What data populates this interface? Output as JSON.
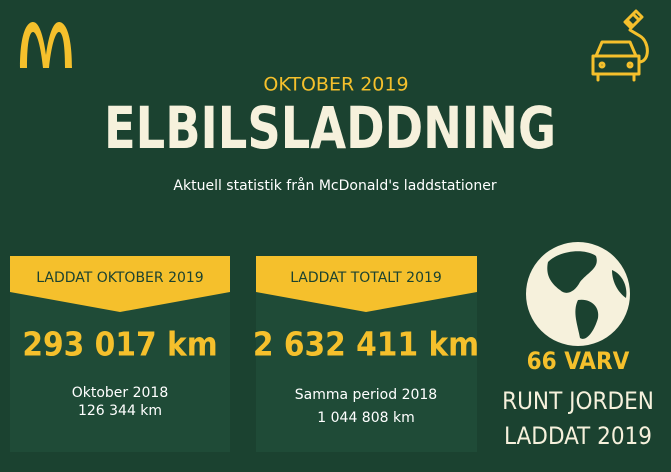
{
  "header": {
    "kicker": "OKTOBER 2019",
    "title": "ELBILSLADDNING",
    "subtitle": "Aktuell statistik från McDonald's laddstationer"
  },
  "cards": [
    {
      "label": "LADDAT OKTOBER 2019",
      "value": "293 017 km",
      "compare_label": "Oktober 2018",
      "compare_value": "126 344 km"
    },
    {
      "label": "LADDAT TOTALT 2019",
      "value": "2 632 411 km",
      "compare_label": "Samma period 2018",
      "compare_value": "1 044 808 km"
    }
  ],
  "globe": {
    "highlight": "66 VARV",
    "line1": "RUNT JORDEN",
    "line2": "LADDAT 2019"
  }
}
